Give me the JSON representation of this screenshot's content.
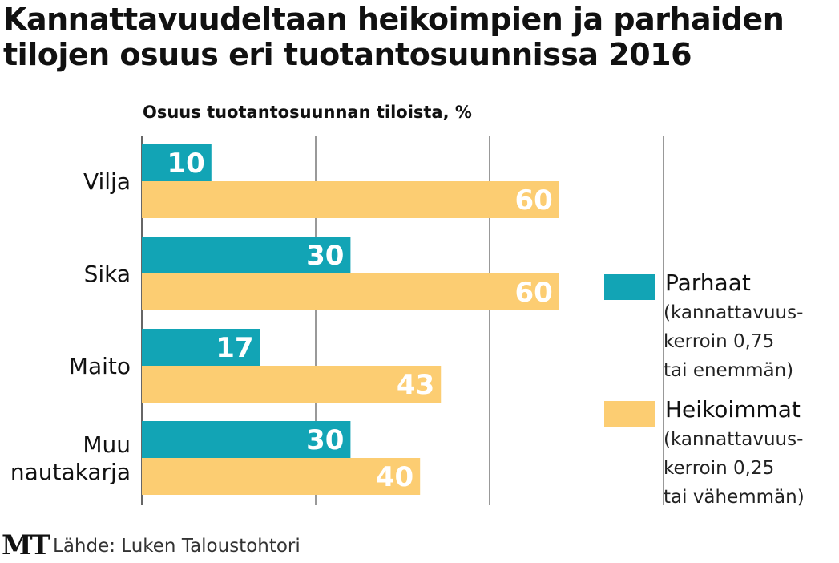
{
  "chart_data": {
    "type": "bar",
    "orientation": "horizontal",
    "title": "Kannattavuudeltaan heikoimpien ja parhaiden tilojen osuus eri tuotantosuunnissa 2016",
    "title_lines": [
      "Kannattavuudeltaan heikoimpien ja parhaiden",
      "tilojen osuus eri tuotantosuunnissa 2016"
    ],
    "subtitle": "Osuus tuotantosuunnan tiloista, %",
    "categories": [
      "Vilja",
      "Sika",
      "Maito",
      "Muu nautakarja"
    ],
    "category_lines": [
      [
        "Vilja"
      ],
      [
        "Sika"
      ],
      [
        "Maito"
      ],
      [
        "Muu",
        "nautakarja"
      ]
    ],
    "series": [
      {
        "name": "Parhaat",
        "note": [
          "(kannattavuus-",
          "kerroin 0,75",
          "tai enemmän)"
        ],
        "color": "#12a4b5",
        "values": [
          10,
          30,
          17,
          30
        ]
      },
      {
        "name": "Heikoimmat",
        "note": [
          "(kannattavuus-",
          "kerroin 0,25",
          "tai vähemmän)"
        ],
        "color": "#fccd72",
        "values": [
          60,
          60,
          43,
          40
        ]
      }
    ],
    "xlim": [
      0,
      100
    ],
    "gridlines": [
      0,
      25,
      50,
      75
    ],
    "grid": true,
    "legend_position": "right"
  },
  "footer": {
    "logo": "MT",
    "source": "Lähde: Luken Taloustohtori"
  }
}
